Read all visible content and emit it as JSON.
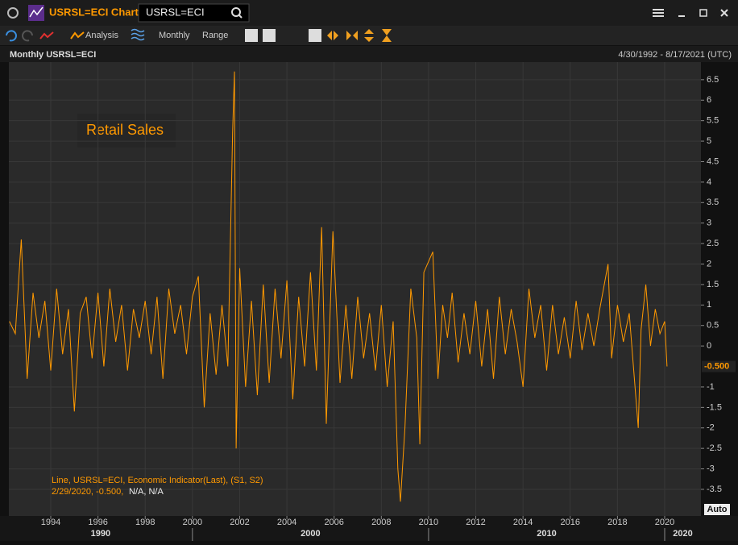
{
  "window": {
    "title": "USRSL=ECI Chart",
    "search": "USRSL=ECI"
  },
  "toolbar": {
    "analysis": "Analysis",
    "interval": "Monthly",
    "range": "Range"
  },
  "panel": {
    "title": "Monthly USRSL=ECI",
    "date_range": "4/30/1992 - 8/17/2021 (UTC)",
    "auto": "Auto"
  },
  "chart_data": {
    "type": "line",
    "annotation": "Retail Sales",
    "color": "#ff9900",
    "legend": {
      "line1": "Line, USRSL=ECI, Economic Indicator(Last), (S1, S2)",
      "line2_value": "2/29/2020, -0.500,",
      "line2_rest": "N/A, N/A"
    },
    "current_value": {
      "value": -0.5,
      "label": "-0.500"
    },
    "x": [
      1992.25,
      1992.5,
      1992.75,
      1993.0,
      1993.25,
      1993.5,
      1993.75,
      1994.0,
      1994.25,
      1994.5,
      1994.75,
      1995.0,
      1995.25,
      1995.5,
      1995.75,
      1996.0,
      1996.25,
      1996.5,
      1996.75,
      1997.0,
      1997.25,
      1997.5,
      1997.75,
      1998.0,
      1998.25,
      1998.5,
      1998.75,
      1999.0,
      1999.25,
      1999.5,
      1999.75,
      2000.0,
      2000.25,
      2000.5,
      2000.75,
      2001.0,
      2001.25,
      2001.5,
      2001.7,
      2001.78,
      2001.85,
      2002.0,
      2002.25,
      2002.5,
      2002.75,
      2003.0,
      2003.25,
      2003.5,
      2003.75,
      2004.0,
      2004.25,
      2004.5,
      2004.75,
      2005.0,
      2005.25,
      2005.47,
      2005.67,
      2005.95,
      2006.25,
      2006.5,
      2006.75,
      2007.0,
      2007.25,
      2007.5,
      2007.75,
      2008.0,
      2008.25,
      2008.5,
      2008.7,
      2008.81,
      2009.0,
      2009.25,
      2009.5,
      2009.63,
      2009.8,
      2010.18,
      2010.4,
      2010.6,
      2010.8,
      2011.0,
      2011.25,
      2011.5,
      2011.75,
      2012.0,
      2012.25,
      2012.5,
      2012.75,
      2013.0,
      2013.25,
      2013.5,
      2013.75,
      2014.0,
      2014.25,
      2014.5,
      2014.75,
      2015.0,
      2015.25,
      2015.5,
      2015.75,
      2016.0,
      2016.25,
      2016.5,
      2016.75,
      2017.0,
      2017.25,
      2017.6,
      2017.75,
      2018.0,
      2018.25,
      2018.5,
      2018.88,
      2019.0,
      2019.2,
      2019.4,
      2019.6,
      2019.8,
      2020.0,
      2020.1
    ],
    "values": [
      0.6,
      0.3,
      2.6,
      -0.8,
      1.3,
      0.2,
      1.1,
      -0.6,
      1.4,
      -0.2,
      0.9,
      -1.6,
      0.8,
      1.2,
      -0.3,
      1.3,
      -0.5,
      1.4,
      0.1,
      1.0,
      -0.6,
      0.9,
      0.2,
      1.1,
      -0.2,
      1.2,
      -0.8,
      1.4,
      0.3,
      1.0,
      -0.2,
      1.2,
      1.7,
      -1.5,
      0.8,
      -0.7,
      1.0,
      -0.5,
      5.2,
      6.7,
      -2.5,
      1.9,
      -1.0,
      1.1,
      -1.2,
      1.5,
      -0.9,
      1.4,
      -0.3,
      1.6,
      -1.3,
      1.2,
      -0.5,
      1.8,
      -0.6,
      2.9,
      -1.9,
      2.8,
      -0.9,
      1.0,
      -0.8,
      1.2,
      -0.3,
      0.8,
      -0.6,
      1.0,
      -1.0,
      0.6,
      -3.0,
      -3.8,
      -2.0,
      1.4,
      0.2,
      -2.4,
      1.8,
      2.3,
      -0.8,
      1.0,
      0.2,
      1.3,
      -0.4,
      0.8,
      -0.2,
      1.1,
      -0.5,
      0.9,
      -0.8,
      1.2,
      -0.2,
      0.9,
      0.1,
      -1.0,
      1.4,
      0.2,
      1.0,
      -0.6,
      1.0,
      -0.2,
      0.7,
      -0.3,
      1.1,
      -0.1,
      0.8,
      0.0,
      0.9,
      2.0,
      -0.3,
      1.0,
      0.1,
      0.8,
      -2.0,
      0.4,
      1.5,
      0.0,
      0.9,
      0.3,
      0.6,
      -0.5
    ],
    "xlim": [
      1992.2,
      2021.6
    ],
    "ylim": [
      -4.15,
      6.93
    ],
    "xticks": [
      1994,
      1996,
      1998,
      2000,
      2002,
      2004,
      2006,
      2008,
      2010,
      2012,
      2014,
      2016,
      2018,
      2020
    ],
    "decades": [
      1990,
      2000,
      2010,
      2020
    ],
    "yticks": [
      -3.5,
      -3,
      -2.5,
      -2,
      -1.5,
      -1,
      0,
      0.5,
      1,
      1.5,
      2,
      2.5,
      3,
      3.5,
      4,
      4.5,
      5,
      5.5,
      6,
      6.5
    ],
    "grid": true
  }
}
